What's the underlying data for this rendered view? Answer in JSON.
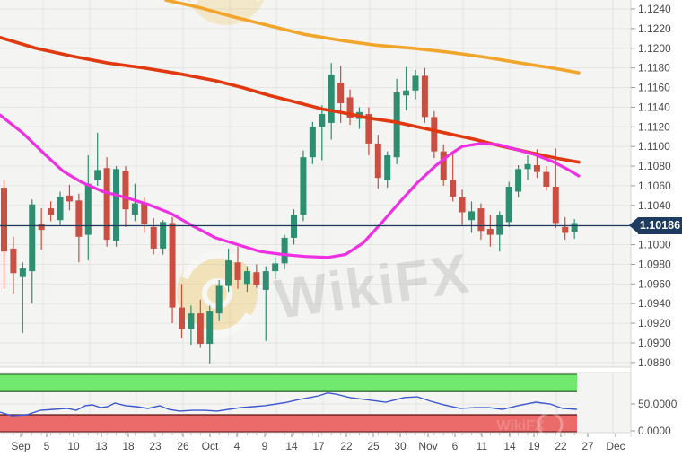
{
  "current_price": "1.10186",
  "watermark": {
    "text": "WikiFX"
  },
  "colors": {
    "plot_bg": "#f4f4f2",
    "grid": "#e4e4e3",
    "candle_up": "#2d8e71",
    "candle_down": "#ca4f43",
    "ma_slow": "#f2a52b",
    "ma_mid": "#e0380f",
    "ma_fast": "#ee2fe2",
    "price_line": "#1d3c60",
    "axis_text": "#4a4a4a",
    "indicator_line": "#3b57d0",
    "overbought_fill": "#70e96e",
    "overbought_edge": "#1b4f1b",
    "oversold_fill": "#eb6a6a",
    "oversold_edge": "#5a1212"
  },
  "chart_data": {
    "type": "candlestick",
    "ylim": [
      1.088,
      1.124
    ],
    "price_step": 0.002,
    "price_ticks": [
      "1.1240",
      "1.1220",
      "1.1200",
      "1.1180",
      "1.1160",
      "1.1140",
      "1.1120",
      "1.1100",
      "1.1080",
      "1.1060",
      "1.1040",
      "1.1020",
      "1.1000",
      "1.0980",
      "1.0960",
      "1.0940",
      "1.0920",
      "1.0900",
      "1.0880"
    ],
    "time_ticks": [
      [
        "Sep",
        23
      ],
      [
        "5",
        52
      ],
      [
        "10",
        82
      ],
      [
        "13",
        113
      ],
      [
        "18",
        143
      ],
      [
        "23",
        173
      ],
      [
        "26",
        204
      ],
      [
        "Oct",
        234
      ],
      [
        "4",
        264
      ],
      [
        "9",
        295
      ],
      [
        "14",
        325
      ],
      [
        "17",
        355
      ],
      [
        "22",
        386
      ],
      [
        "25",
        416
      ],
      [
        "30",
        446
      ],
      [
        "Nov",
        477
      ],
      [
        "6",
        507
      ],
      [
        "11",
        537
      ],
      [
        "14",
        568
      ],
      [
        "19",
        595
      ],
      [
        "22",
        625
      ],
      [
        "27",
        655
      ],
      [
        "Dec",
        686
      ]
    ],
    "candles": [
      [
        1.1058,
        1.1066,
        1.0955,
        1.0993
      ],
      [
        1.0996,
        1.1008,
        1.095,
        1.0971
      ],
      [
        1.0967,
        1.0982,
        1.091,
        1.0976
      ],
      [
        1.0973,
        1.1046,
        1.094,
        1.1041
      ],
      [
        1.1021,
        1.1037,
        1.0995,
        1.1015
      ],
      [
        1.1037,
        1.1044,
        1.1024,
        1.103
      ],
      [
        1.1025,
        1.1054,
        1.102,
        1.1049
      ],
      [
        1.105,
        1.1061,
        1.1035,
        1.1044
      ],
      [
        1.1045,
        1.1052,
        1.0982,
        1.1008
      ],
      [
        1.101,
        1.1091,
        1.0984,
        1.1062
      ],
      [
        1.1066,
        1.1114,
        1.106,
        1.1076
      ],
      [
        1.1078,
        1.1089,
        1.0998,
        1.1005
      ],
      [
        1.1004,
        1.108,
        1.0998,
        1.1077
      ],
      [
        1.1075,
        1.108,
        1.1018,
        1.1036
      ],
      [
        1.103,
        1.1062,
        1.1024,
        1.1042
      ],
      [
        1.1043,
        1.1048,
        1.1012,
        1.1021
      ],
      [
        1.1018,
        1.1027,
        1.099,
        1.0996
      ],
      [
        1.0996,
        1.1025,
        1.099,
        1.1023
      ],
      [
        1.1022,
        1.1028,
        1.092,
        1.0936
      ],
      [
        1.0936,
        1.096,
        1.0905,
        1.0914
      ],
      [
        1.0914,
        1.0938,
        1.0898,
        1.093
      ],
      [
        1.093,
        1.0944,
        1.0895,
        1.0899
      ],
      [
        1.0899,
        1.0938,
        1.0879,
        1.0932
      ],
      [
        1.093,
        1.0964,
        1.0922,
        1.0958
      ],
      [
        1.0958,
        1.0996,
        1.0952,
        1.0984
      ],
      [
        1.0982,
        1.0998,
        1.0955,
        1.0964
      ],
      [
        1.096,
        1.0978,
        1.0952,
        1.0973
      ],
      [
        1.0972,
        1.098,
        1.0956,
        1.0959
      ],
      [
        1.0954,
        1.0978,
        1.0902,
        1.0973
      ],
      [
        1.0973,
        1.0987,
        1.0965,
        1.0981
      ],
      [
        1.0981,
        1.101,
        1.0975,
        1.1007
      ],
      [
        1.1007,
        1.1036,
        1.1,
        1.103
      ],
      [
        1.103,
        1.1096,
        1.1024,
        1.1089
      ],
      [
        1.1089,
        1.1125,
        1.1082,
        1.112
      ],
      [
        1.112,
        1.1142,
        1.1086,
        1.1133
      ],
      [
        1.1124,
        1.1185,
        1.1107,
        1.1173
      ],
      [
        1.1165,
        1.1182,
        1.1124,
        1.1144
      ],
      [
        1.115,
        1.1158,
        1.1122,
        1.1129
      ],
      [
        1.1128,
        1.114,
        1.1118,
        1.1135
      ],
      [
        1.1133,
        1.114,
        1.1091,
        1.1103
      ],
      [
        1.1103,
        1.1112,
        1.1057,
        1.1068
      ],
      [
        1.1066,
        1.1095,
        1.1058,
        1.1091
      ],
      [
        1.1089,
        1.1169,
        1.1082,
        1.1155
      ],
      [
        1.1152,
        1.1181,
        1.1137,
        1.1157
      ],
      [
        1.1157,
        1.1178,
        1.1148,
        1.1172
      ],
      [
        1.1172,
        1.118,
        1.1124,
        1.113
      ],
      [
        1.113,
        1.1136,
        1.1088,
        1.1095
      ],
      [
        1.1095,
        1.1102,
        1.106,
        1.1066
      ],
      [
        1.1066,
        1.1092,
        1.1044,
        1.1049
      ],
      [
        1.1048,
        1.1056,
        1.102,
        1.1033
      ],
      [
        1.1025,
        1.1044,
        1.1012,
        1.1034
      ],
      [
        1.1037,
        1.1042,
        1.1005,
        1.1014
      ],
      [
        1.1016,
        1.103,
        1.0998,
        1.101
      ],
      [
        1.101,
        1.1034,
        1.0993,
        1.103
      ],
      [
        1.1023,
        1.1064,
        1.1018,
        1.1059
      ],
      [
        1.1054,
        1.1081,
        1.1048,
        1.1077
      ],
      [
        1.1077,
        1.1091,
        1.1066,
        1.1082
      ],
      [
        1.1081,
        1.1097,
        1.1068,
        1.1074
      ],
      [
        1.1074,
        1.108,
        1.1055,
        1.1059
      ],
      [
        1.1059,
        1.1098,
        1.1017,
        1.1022
      ],
      [
        1.1018,
        1.1028,
        1.1005,
        1.1012
      ],
      [
        1.1013,
        1.1026,
        1.1006,
        1.1022
      ]
    ],
    "moving_averages": [
      {
        "name": "slow-orange",
        "points": [
          [
            185,
            1.1249
          ],
          [
            220,
            1.1242
          ],
          [
            260,
            1.1232
          ],
          [
            300,
            1.1223
          ],
          [
            340,
            1.1214
          ],
          [
            380,
            1.1208
          ],
          [
            420,
            1.1203
          ],
          [
            460,
            1.12
          ],
          [
            500,
            1.1196
          ],
          [
            540,
            1.1191
          ],
          [
            580,
            1.1185
          ],
          [
            615,
            1.118
          ],
          [
            645,
            1.1175
          ]
        ]
      },
      {
        "name": "mid-red",
        "points": [
          [
            0,
            1.1211
          ],
          [
            40,
            1.12
          ],
          [
            80,
            1.1192
          ],
          [
            120,
            1.1185
          ],
          [
            160,
            1.118
          ],
          [
            200,
            1.1174
          ],
          [
            240,
            1.1167
          ],
          [
            270,
            1.116
          ],
          [
            300,
            1.1152
          ],
          [
            330,
            1.1145
          ],
          [
            360,
            1.1138
          ],
          [
            390,
            1.1133
          ],
          [
            410,
            1.1129
          ],
          [
            440,
            1.1125
          ],
          [
            470,
            1.1119
          ],
          [
            500,
            1.1113
          ],
          [
            530,
            1.1107
          ],
          [
            560,
            1.11
          ],
          [
            590,
            1.1094
          ],
          [
            620,
            1.1088
          ],
          [
            645,
            1.1084
          ]
        ]
      },
      {
        "name": "fast-magenta",
        "points": [
          [
            0,
            1.1132
          ],
          [
            25,
            1.1114
          ],
          [
            50,
            1.1092
          ],
          [
            70,
            1.1075
          ],
          [
            90,
            1.1064
          ],
          [
            115,
            1.1054
          ],
          [
            140,
            1.1048
          ],
          [
            165,
            1.1041
          ],
          [
            190,
            1.1032
          ],
          [
            215,
            1.1019
          ],
          [
            240,
            1.1007
          ],
          [
            265,
            1.1
          ],
          [
            290,
            1.0993
          ],
          [
            315,
            1.099
          ],
          [
            340,
            1.0988
          ],
          [
            365,
            1.0987
          ],
          [
            385,
            1.099
          ],
          [
            405,
            1.1002
          ],
          [
            425,
            1.1022
          ],
          [
            445,
            1.1043
          ],
          [
            465,
            1.1063
          ],
          [
            485,
            1.108
          ],
          [
            500,
            1.1091
          ],
          [
            515,
            1.11
          ],
          [
            535,
            1.1103
          ],
          [
            555,
            1.1102
          ],
          [
            575,
            1.1097
          ],
          [
            595,
            1.1092
          ],
          [
            615,
            1.1085
          ],
          [
            632,
            1.1077
          ],
          [
            645,
            1.107
          ]
        ]
      }
    ],
    "indicator": {
      "scale_ticks": [
        [
          "50.0000",
          50
        ],
        [
          "0.0000",
          0
        ]
      ],
      "overbought_band": [
        73,
        107
      ],
      "oversold_band": [
        -3,
        30
      ],
      "line": [
        [
          0,
          35
        ],
        [
          13,
          28.3
        ],
        [
          30,
          30
        ],
        [
          45,
          38.3
        ],
        [
          60,
          40
        ],
        [
          75,
          41.7
        ],
        [
          85,
          38.3
        ],
        [
          95,
          46.7
        ],
        [
          103,
          48.3
        ],
        [
          112,
          43.3
        ],
        [
          120,
          45
        ],
        [
          128,
          51.7
        ],
        [
          140,
          46.7
        ],
        [
          152,
          45
        ],
        [
          165,
          41.7
        ],
        [
          178,
          46.7
        ],
        [
          188,
          40
        ],
        [
          200,
          36.7
        ],
        [
          214,
          38.3
        ],
        [
          228,
          38.3
        ],
        [
          242,
          36.7
        ],
        [
          255,
          40
        ],
        [
          268,
          43.3
        ],
        [
          282,
          45
        ],
        [
          295,
          46.7
        ],
        [
          308,
          50
        ],
        [
          320,
          53.3
        ],
        [
          333,
          58.3
        ],
        [
          345,
          61.7
        ],
        [
          355,
          65
        ],
        [
          365,
          70.5
        ],
        [
          375,
          68
        ],
        [
          390,
          61.7
        ],
        [
          407,
          58.3
        ],
        [
          430,
          53.3
        ],
        [
          450,
          61.7
        ],
        [
          465,
          63.3
        ],
        [
          480,
          55
        ],
        [
          495,
          48.3
        ],
        [
          513,
          41.7
        ],
        [
          530,
          43.3
        ],
        [
          545,
          43.3
        ],
        [
          560,
          40
        ],
        [
          577,
          46.7
        ],
        [
          597,
          53.3
        ],
        [
          613,
          50
        ],
        [
          627,
          41.7
        ],
        [
          643,
          40
        ]
      ]
    }
  }
}
